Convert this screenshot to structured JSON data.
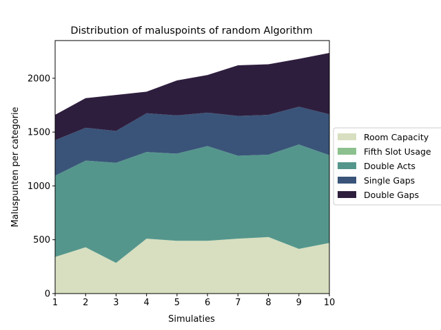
{
  "chart_data": {
    "type": "area",
    "title": "Distribution of maluspoints of random Algorithm",
    "xlabel": "Simulaties",
    "ylabel": "Maluspunten per categorie",
    "x": [
      1,
      2,
      3,
      4,
      5,
      6,
      7,
      8,
      9,
      10
    ],
    "xlim": [
      1,
      10
    ],
    "ylim": [
      0,
      2350
    ],
    "yticks": [
      0,
      500,
      1000,
      1500,
      2000
    ],
    "stacked": true,
    "grid": false,
    "legend_position": "right",
    "series": [
      {
        "name": "Room Capacity",
        "color": "#d7dfc0",
        "values": [
          340,
          430,
          285,
          510,
          490,
          490,
          510,
          525,
          415,
          470
        ]
      },
      {
        "name": "Fifth Slot Usage",
        "color": "#8cc08e",
        "values": [
          0,
          0,
          0,
          0,
          0,
          0,
          0,
          0,
          0,
          0
        ]
      },
      {
        "name": "Double Acts",
        "color": "#55968c",
        "values": [
          755,
          805,
          930,
          805,
          810,
          880,
          770,
          765,
          970,
          815
        ]
      },
      {
        "name": "Single Gaps",
        "color": "#3a5479",
        "values": [
          330,
          305,
          295,
          360,
          355,
          310,
          370,
          370,
          350,
          380
        ]
      },
      {
        "name": "Double Gaps",
        "color": "#2e1e3e",
        "values": [
          235,
          275,
          335,
          200,
          325,
          350,
          470,
          470,
          445,
          570
        ]
      }
    ]
  }
}
